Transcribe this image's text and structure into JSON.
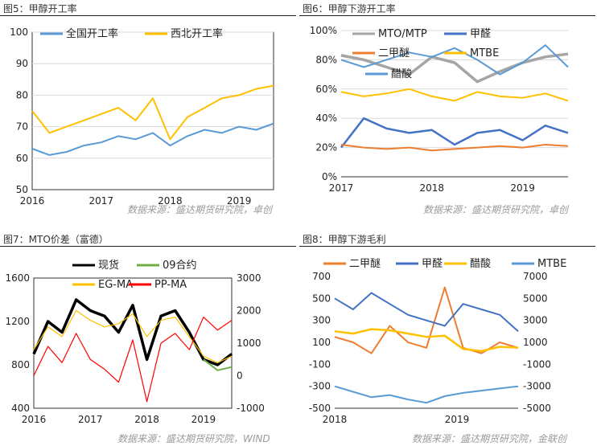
{
  "panels": {
    "p5": {
      "title": "图5：甲醇开工率",
      "source": "数据来源：盛达期货研究院，卓创"
    },
    "p6": {
      "title": "图6：甲醇下游开工率",
      "source": "数据来源：盛达期货研究院，卓创"
    },
    "p7": {
      "title": "图7：MTO价差（富德）",
      "source": "数据来源：盛达期货研究院，WIND"
    },
    "p8": {
      "title": "图8：甲醇下游毛利",
      "source": "数据来源：盛达期货研究院，金联创"
    }
  },
  "chart_data": [
    {
      "id": "p5",
      "type": "line",
      "ylim": [
        50,
        100
      ],
      "yticks": [
        "50",
        "60",
        "70",
        "80",
        "90",
        "100"
      ],
      "xticks": [
        "2016",
        "2017",
        "2018",
        "2019"
      ],
      "x": [
        2016.0,
        2016.25,
        2016.5,
        2016.75,
        2017.0,
        2017.25,
        2017.5,
        2017.75,
        2018.0,
        2018.25,
        2018.5,
        2018.75,
        2019.0,
        2019.25,
        2019.5
      ],
      "series": [
        {
          "name": "全国开工率",
          "color": "#5b9bd5",
          "width": 2,
          "values": [
            63,
            61,
            62,
            64,
            65,
            67,
            66,
            68,
            64,
            67,
            69,
            68,
            70,
            69,
            71
          ]
        },
        {
          "name": "西北开工率",
          "color": "#ffc000",
          "width": 2,
          "values": [
            75,
            68,
            70,
            72,
            74,
            76,
            72,
            79,
            66,
            73,
            76,
            79,
            80,
            82,
            83
          ]
        }
      ]
    },
    {
      "id": "p6",
      "type": "line",
      "ylim": [
        0,
        100
      ],
      "yticks": [
        "0%",
        "20%",
        "40%",
        "60%",
        "80%",
        "100%"
      ],
      "xticks": [
        "2017",
        "2018",
        "2019"
      ],
      "x": [
        2017.0,
        2017.25,
        2017.5,
        2017.75,
        2018.0,
        2018.25,
        2018.5,
        2018.75,
        2019.0,
        2019.25,
        2019.5
      ],
      "series": [
        {
          "name": "MTO/MTP",
          "color": "#a5a5a5",
          "width": 3.5,
          "values": [
            83,
            80,
            75,
            70,
            82,
            78,
            65,
            72,
            78,
            82,
            84
          ]
        },
        {
          "name": "甲醛",
          "color": "#4472c4",
          "width": 2.5,
          "values": [
            20,
            40,
            33,
            30,
            32,
            22,
            30,
            32,
            25,
            35,
            30
          ]
        },
        {
          "name": "二甲醚",
          "color": "#ed7d31",
          "width": 2,
          "values": [
            22,
            20,
            19,
            20,
            18,
            19,
            20,
            21,
            20,
            22,
            21
          ]
        },
        {
          "name": "MTBE",
          "color": "#ffc000",
          "width": 2,
          "values": [
            58,
            55,
            57,
            60,
            55,
            52,
            58,
            55,
            54,
            57,
            52
          ]
        },
        {
          "name": "醋酸",
          "color": "#5b9bd5",
          "width": 2,
          "values": [
            80,
            75,
            80,
            85,
            82,
            88,
            80,
            70,
            78,
            90,
            75
          ]
        }
      ]
    },
    {
      "id": "p7",
      "type": "line",
      "ylim": [
        400,
        1600
      ],
      "yticks": [
        "400",
        "800",
        "1200",
        "1600"
      ],
      "y2lim": [
        -1000,
        3000
      ],
      "y2ticks": [
        "-1000",
        "0",
        "1000",
        "2000",
        "3000"
      ],
      "xticks": [
        "2016",
        "2017",
        "2018",
        "2019"
      ],
      "x": [
        2016.0,
        2016.25,
        2016.5,
        2016.75,
        2017.0,
        2017.25,
        2017.5,
        2017.75,
        2018.0,
        2018.25,
        2018.5,
        2018.75,
        2019.0,
        2019.25,
        2019.5
      ],
      "series": [
        {
          "name": "现货",
          "color": "#000000",
          "width": 3.5,
          "axis": "left",
          "values": [
            900,
            1200,
            1100,
            1400,
            1300,
            1250,
            1100,
            1350,
            850,
            1250,
            1300,
            1100,
            850,
            800,
            900
          ]
        },
        {
          "name": "09合约",
          "color": "#70ad47",
          "width": 2,
          "axis": "left",
          "start": 12,
          "values": [
            null,
            null,
            null,
            null,
            null,
            null,
            null,
            null,
            null,
            null,
            null,
            null,
            850,
            750,
            780
          ]
        },
        {
          "name": "EG-MA",
          "color": "#ffc000",
          "width": 1.2,
          "axis": "right",
          "values": [
            800,
            1500,
            1200,
            2000,
            1700,
            1500,
            1600,
            1900,
            1200,
            1700,
            1800,
            1200,
            600,
            400,
            600
          ]
        },
        {
          "name": "PP-MA",
          "color": "#ff0000",
          "width": 1.2,
          "axis": "right",
          "values": [
            0,
            900,
            400,
            1300,
            500,
            200,
            -200,
            1100,
            -800,
            1000,
            1300,
            800,
            1800,
            1400,
            1700
          ]
        }
      ]
    },
    {
      "id": "p8",
      "type": "line",
      "ylim": [
        -500,
        700
      ],
      "yticks": [
        "-500",
        "-300",
        "-100",
        "100",
        "300",
        "500",
        "700"
      ],
      "y2lim": [
        -5000,
        7000
      ],
      "y2ticks": [
        "-5000",
        "-3000",
        "-1000",
        "1000",
        "3000",
        "5000",
        "7000"
      ],
      "xticks": [
        "2018",
        "2019"
      ],
      "x": [
        2017.8,
        2018.0,
        2018.2,
        2018.4,
        2018.6,
        2018.8,
        2019.0,
        2019.2,
        2019.4,
        2019.6,
        2019.8
      ],
      "series": [
        {
          "name": "二甲醚",
          "color": "#ed7d31",
          "width": 2,
          "axis": "left",
          "values": [
            150,
            100,
            0,
            250,
            100,
            50,
            600,
            50,
            0,
            100,
            50
          ]
        },
        {
          "name": "甲醛",
          "color": "#4472c4",
          "width": 2,
          "axis": "left",
          "values": [
            500,
            400,
            550,
            450,
            350,
            300,
            250,
            450,
            400,
            350,
            200
          ]
        },
        {
          "name": "醋酸",
          "color": "#ffc000",
          "width": 2.5,
          "axis": "right",
          "values": [
            2000,
            1800,
            2200,
            2100,
            1800,
            1500,
            1600,
            400,
            200,
            600,
            500
          ]
        },
        {
          "name": "MTBE",
          "color": "#5b9bd5",
          "width": 2,
          "axis": "right",
          "values": [
            -3000,
            -3500,
            -4000,
            -3800,
            -4200,
            -4500,
            -3900,
            -3600,
            -3400,
            -3200,
            -3000
          ]
        }
      ]
    }
  ]
}
